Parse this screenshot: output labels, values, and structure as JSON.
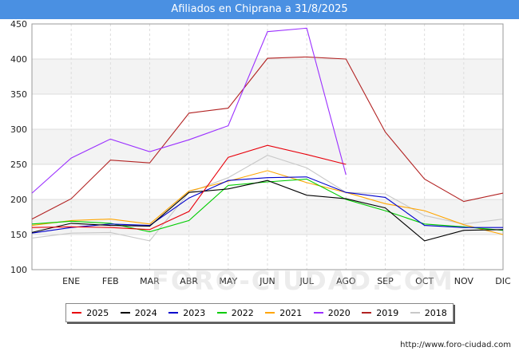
{
  "header": {
    "title": "Afiliados en Chiprana a 31/8/2025"
  },
  "source": "http://www.foro-ciudad.com",
  "watermark": "FORO-CIUDAD.COM",
  "chart_data": {
    "type": "line",
    "title": "Afiliados en Chiprana a 31/8/2025",
    "xlabel": "",
    "ylabel": "",
    "categories": [
      "",
      "ENE",
      "FEB",
      "MAR",
      "ABR",
      "MAY",
      "JUN",
      "JUL",
      "AGO",
      "SEP",
      "OCT",
      "NOV",
      "DIC"
    ],
    "ylim": [
      100,
      450
    ],
    "yticks": [
      100,
      150,
      200,
      250,
      300,
      350,
      400,
      450
    ],
    "grid": true,
    "legend_position": "bottom",
    "series": [
      {
        "name": "2025",
        "color": "#e8000b",
        "values": [
          160,
          161,
          160,
          157,
          183,
          260,
          277,
          264,
          250,
          null,
          null,
          null,
          null
        ]
      },
      {
        "name": "2024",
        "color": "#000000",
        "values": [
          153,
          166,
          163,
          162,
          210,
          215,
          227,
          206,
          201,
          188,
          141,
          156,
          157
        ]
      },
      {
        "name": "2023",
        "color": "#0000cc",
        "values": [
          152,
          160,
          165,
          163,
          202,
          227,
          231,
          232,
          210,
          203,
          163,
          160,
          160
        ]
      },
      {
        "name": "2022",
        "color": "#00cc00",
        "values": [
          165,
          169,
          166,
          154,
          170,
          220,
          225,
          229,
          200,
          184,
          165,
          161,
          156
        ]
      },
      {
        "name": "2021",
        "color": "#ffa500",
        "values": [
          163,
          170,
          172,
          165,
          212,
          226,
          241,
          224,
          210,
          194,
          184,
          164,
          150
        ]
      },
      {
        "name": "2020",
        "color": "#9b30ff",
        "values": [
          209,
          259,
          286,
          268,
          285,
          305,
          439,
          444,
          235,
          null,
          null,
          null,
          null
        ]
      },
      {
        "name": "2019",
        "color": "#b22222",
        "values": [
          172,
          201,
          256,
          252,
          323,
          330,
          401,
          403,
          400,
          296,
          229,
          197,
          209
        ]
      },
      {
        "name": "2018",
        "color": "#c8c8c8",
        "values": [
          145,
          152,
          153,
          141,
          210,
          231,
          263,
          245,
          210,
          208,
          177,
          165,
          172
        ]
      }
    ]
  }
}
